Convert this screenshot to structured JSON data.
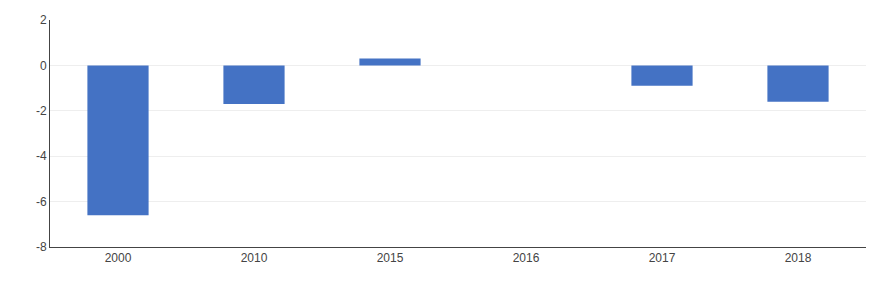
{
  "chart_data": {
    "type": "bar",
    "categories": [
      "2000",
      "2010",
      "2015",
      "2016",
      "2017",
      "2018"
    ],
    "values": [
      -6.6,
      -1.7,
      0.3,
      0.0,
      -0.9,
      -1.6
    ],
    "color": "#4472C4",
    "ylim": [
      -8,
      2
    ],
    "yticks": [
      -8,
      -6,
      -4,
      -2,
      0,
      2
    ],
    "grid": true
  }
}
